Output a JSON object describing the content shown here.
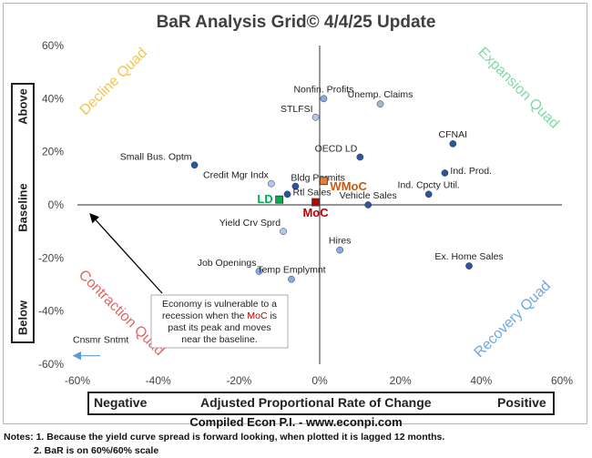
{
  "title": "BaR Analysis Grid© 4/4/25 Update",
  "y_axis_labels": {
    "above": "Above",
    "baseline": "Baseline",
    "below": "Below"
  },
  "x_axis_labels": {
    "negative": "Negative",
    "center": "Adjusted Proportional Rate of Change",
    "positive": "Positive"
  },
  "credit": "Compiled Econ P.I. - www.econpi.com",
  "notes": [
    "Notes: 1. Because the yield curve spread is forward looking, when plotted it is lagged 12 months.",
    "2. BaR is on 60%/60% scale"
  ],
  "quadrants": [
    {
      "label": "Decline Quad",
      "color": "#f5c451"
    },
    {
      "label": "Expansion Quad",
      "color": "#7fd9a6"
    },
    {
      "label": "Contraction Quad",
      "color": "#e06666"
    },
    {
      "label": "Recovery Quad",
      "color": "#6fa8dc"
    }
  ],
  "annotation": {
    "line1": "Economy is vulnerable to a",
    "line2_pre": "recession when the ",
    "line2_highlight": "MoC",
    "line2_post": " is",
    "line3": "past its peak and moves",
    "line4": "near the baseline.",
    "highlight_color": "#c00000"
  },
  "chart_data": {
    "type": "scatter",
    "xlim": [
      -60,
      60
    ],
    "ylim": [
      -60,
      60
    ],
    "x_ticks": [
      -60,
      -40,
      -20,
      0,
      20,
      40,
      60
    ],
    "y_ticks": [
      -60,
      -40,
      -20,
      0,
      20,
      40,
      60
    ],
    "tick_suffix": "%",
    "grid": false,
    "points": [
      {
        "label": "Nonfin. Profits",
        "x": 1,
        "y": 40,
        "color": "#8ea9db",
        "label_pos": "top"
      },
      {
        "label": "Unemp. Claims",
        "x": 15,
        "y": 38,
        "color": "#a5b4c8",
        "label_pos": "top"
      },
      {
        "label": "STLFSI",
        "x": -1,
        "y": 33,
        "color": "#b4c7e7",
        "label_pos": "topleft"
      },
      {
        "label": "CFNAI",
        "x": 33,
        "y": 23,
        "color": "#2f5597",
        "label_pos": "top"
      },
      {
        "label": "OECD LD",
        "x": 10,
        "y": 18,
        "color": "#2f5597",
        "label_pos": "topleft"
      },
      {
        "label": "Small Bus. Optm",
        "x": -31,
        "y": 15,
        "color": "#2f5597",
        "label_pos": "topleft"
      },
      {
        "label": "Ind. Prod.",
        "x": 31,
        "y": 12,
        "color": "#2f5597",
        "label_pos": "right"
      },
      {
        "label": "Credit Mgr Indx",
        "x": -12,
        "y": 8,
        "color": "#b4c7e7",
        "label_pos": "topleft"
      },
      {
        "label": "Bldg Permits",
        "x": -6,
        "y": 7,
        "color": "#2f5597",
        "label_pos": "topright"
      },
      {
        "label": "Ind. Cpcty Util.",
        "x": 27,
        "y": 4,
        "color": "#2f5597",
        "label_pos": "top"
      },
      {
        "label": "Rtl Sales",
        "x": -8,
        "y": 4,
        "color": "#2f5597",
        "label_pos": "right"
      },
      {
        "label": "Vehicle Sales",
        "x": 12,
        "y": 0,
        "color": "#2f5597",
        "label_pos": "top"
      },
      {
        "label": "Yield Crv Sprd",
        "x": -9,
        "y": -10,
        "color": "#b4c7e7",
        "label_pos": "topleft"
      },
      {
        "label": "Hires",
        "x": 5,
        "y": -17,
        "color": "#8ea9db",
        "label_pos": "top"
      },
      {
        "label": "Ex. Home Sales",
        "x": 37,
        "y": -23,
        "color": "#2f5597",
        "label_pos": "top"
      },
      {
        "label": "Job Openings",
        "x": -15,
        "y": -25,
        "color": "#8ea9db",
        "label_pos": "topleft"
      },
      {
        "label": "Temp Emplymnt",
        "x": -7,
        "y": -28,
        "color": "#8ea9db",
        "label_pos": "top"
      }
    ],
    "special_points": [
      {
        "label": "LD",
        "x": -10,
        "y": 2,
        "fill": "#00b050",
        "text_color": "#00b050",
        "shape": "square",
        "label_pos": "left"
      },
      {
        "label": "WMoC",
        "x": 1,
        "y": 9,
        "fill": "#ed7d31",
        "text_color": "#c55a11",
        "shape": "square",
        "label_pos": "right"
      },
      {
        "label": "MoC",
        "x": -1,
        "y": 1,
        "fill": "#c00000",
        "text_color": "#c00000",
        "shape": "square",
        "label_pos": "bottom"
      }
    ],
    "offscale": {
      "label": "Cnsmr Sntmt",
      "direction": "left",
      "y": -52,
      "color": "#5b9bd5"
    }
  }
}
